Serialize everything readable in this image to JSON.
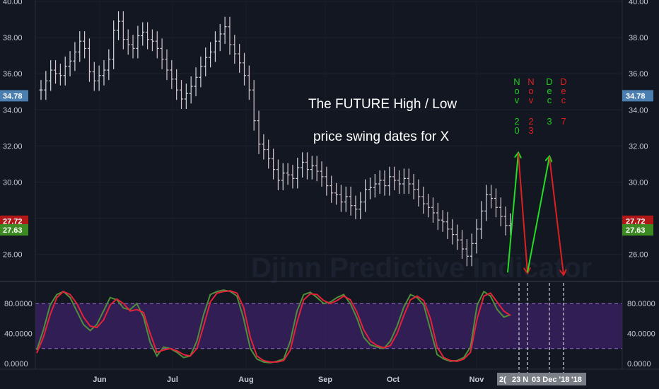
{
  "chart_data": [
    {
      "type": "ohlc",
      "title": "",
      "watermark": "Djinn Predictive Indicator",
      "annotation": [
        "The FUTURE High / Low",
        "price swing dates for   X"
      ],
      "ylim": [
        24.5,
        40
      ],
      "yticks": [
        "26.00",
        "28.00",
        "30.00",
        "32.00",
        "34.00",
        "36.00",
        "38.00",
        "40.00"
      ],
      "price_labels": [
        {
          "text": "34.78",
          "value": 34.78,
          "color": "#4a7fb0"
        },
        {
          "text": "27.72",
          "value": 27.72,
          "color": "#b01818"
        },
        {
          "text": "27.63",
          "value": 27.63,
          "color": "#3e8a22"
        }
      ],
      "xticks": [
        "Jun",
        "Jul",
        "Aug",
        "Sep",
        "Oct",
        "Nov"
      ],
      "bars_close": [
        35.1,
        35.6,
        36.2,
        36.0,
        35.9,
        36.4,
        36.7,
        37.2,
        37.8,
        37.4,
        36.1,
        35.6,
        35.9,
        36.2,
        36.8,
        38.4,
        38.9,
        37.9,
        37.6,
        37.4,
        38.1,
        38.3,
        37.9,
        37.8,
        37.4,
        36.8,
        36.2,
        35.7,
        35.1,
        34.6,
        34.9,
        35.3,
        35.8,
        36.4,
        36.9,
        37.2,
        37.8,
        38.2,
        38.6,
        37.6,
        37.1,
        36.6,
        35.9,
        35.1,
        33.4,
        32.1,
        31.8,
        31.3,
        30.7,
        30.1,
        30.5,
        30.4,
        30.2,
        30.8,
        31.1,
        30.7,
        30.9,
        30.6,
        30.3,
        29.8,
        29.4,
        29.3,
        28.9,
        29.2,
        28.7,
        28.5,
        28.9,
        29.6,
        29.7,
        29.9,
        30.1,
        29.8,
        30.3,
        30.1,
        29.9,
        30.2,
        29.9,
        29.6,
        29.2,
        28.8,
        28.6,
        28.3,
        27.9,
        27.8,
        27.4,
        27.1,
        26.8,
        26.3,
        25.9,
        26.6,
        27.4,
        28.4,
        29.3,
        29.1,
        28.6,
        28.1,
        27.6,
        27.72
      ],
      "marker_dates": [
        {
          "month": "N\no\nv",
          "day": "2\n0",
          "color": "#22cc22"
        },
        {
          "month": "N\no\nv",
          "day": "2\n3",
          "color": "#dd2020"
        },
        {
          "month": "D\ne\nc",
          "day": "3",
          "color": "#22cc22"
        },
        {
          "month": "D\ne\nc",
          "day": "7",
          "color": "#dd2020"
        }
      ],
      "projection": [
        31.6,
        25.0,
        31.4,
        24.9
      ]
    },
    {
      "type": "line",
      "title": "",
      "ylim": [
        0,
        100
      ],
      "yticks": [
        "0.0000",
        "40.0000",
        "80.0000"
      ],
      "band": [
        20,
        80
      ],
      "series": [
        {
          "color": "#4f8f3a",
          "values": [
            18,
            45,
            78,
            92,
            96,
            88,
            70,
            52,
            44,
            52,
            70,
            88,
            85,
            74,
            72,
            80,
            62,
            28,
            10,
            22,
            20,
            15,
            8,
            10,
            30,
            65,
            92,
            96,
            98,
            96,
            90,
            60,
            20,
            6,
            2,
            1,
            3,
            6,
            30,
            70,
            92,
            95,
            88,
            80,
            82,
            88,
            92,
            80,
            60,
            35,
            25,
            22,
            20,
            30,
            50,
            75,
            92,
            88,
            78,
            45,
            12,
            6,
            3,
            4,
            8,
            22,
            78,
            96,
            90,
            72,
            62,
            65
          ]
        },
        {
          "color": "#e6213a",
          "values": [
            14,
            35,
            65,
            88,
            96,
            92,
            80,
            62,
            50,
            48,
            58,
            78,
            86,
            80,
            70,
            72,
            68,
            40,
            15,
            18,
            20,
            17,
            12,
            10,
            20,
            50,
            82,
            94,
            96,
            97,
            94,
            75,
            35,
            10,
            4,
            2,
            2,
            4,
            18,
            55,
            85,
            93,
            92,
            84,
            80,
            84,
            90,
            85,
            68,
            45,
            30,
            24,
            21,
            24,
            40,
            64,
            85,
            90,
            84,
            60,
            22,
            8,
            4,
            3,
            6,
            15,
            60,
            90,
            94,
            82,
            70,
            64
          ]
        }
      ],
      "xticks": [
        "Jun",
        "Jul",
        "Aug",
        "Sep",
        "Oct",
        "Nov"
      ]
    }
  ],
  "date_labels": [
    "2(",
    "23 N",
    "03 Dec '18",
    "'18"
  ]
}
